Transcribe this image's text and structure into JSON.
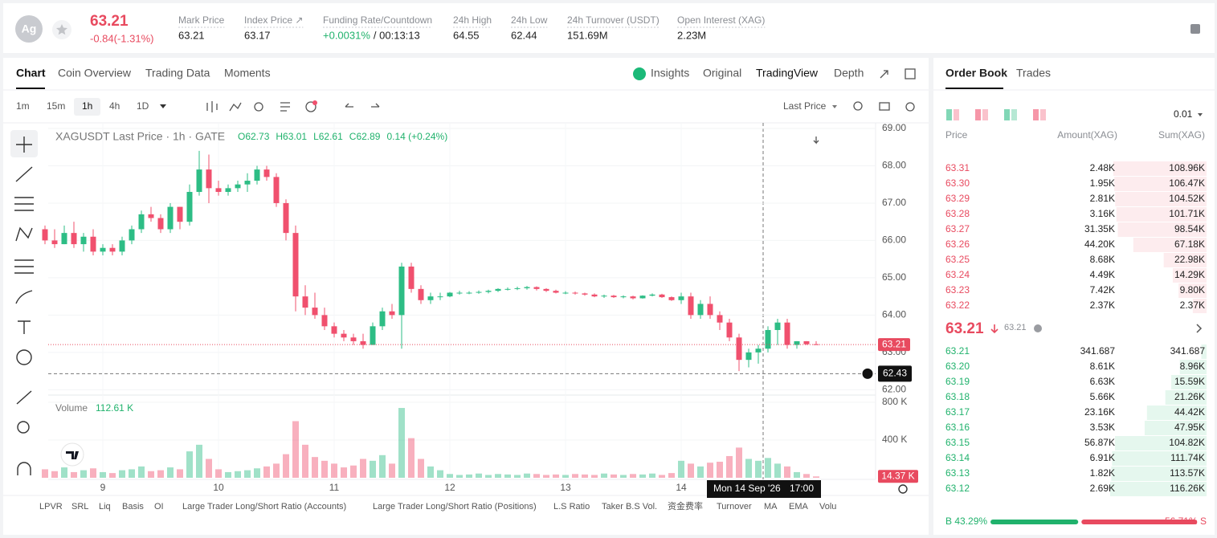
{
  "header": {
    "symbol_icon": "Ag",
    "price": "63.21",
    "change": "-0.84(-1.31%)",
    "stats": [
      {
        "label": "Mark Price",
        "value": "63.21"
      },
      {
        "label": "Index Price ↗",
        "value": "63.17"
      },
      {
        "label": "Funding Rate/Countdown",
        "value": "+0.0031%",
        "countdown": "/ 00:13:13"
      },
      {
        "label": "24h High",
        "value": "64.55"
      },
      {
        "label": "24h Low",
        "value": "62.44"
      },
      {
        "label": "24h Turnover (USDT)",
        "value": "151.69M"
      },
      {
        "label": "Open Interest (XAG)",
        "value": "2.23M"
      }
    ]
  },
  "tabs": [
    "Chart",
    "Coin Overview",
    "Trading Data",
    "Moments"
  ],
  "view_options": [
    "Insights",
    "Original",
    "TradingView",
    "Depth"
  ],
  "intervals": [
    "1m",
    "15m",
    "1h",
    "4h",
    "1D"
  ],
  "price_source": "Last Price",
  "chart_data": {
    "type": "candlestick",
    "legend": {
      "title": "XAGUSDT Last Price · 1h · GATE",
      "ohlc": [
        "O62.73",
        "H63.01",
        "L62.61",
        "C62.89"
      ],
      "change": "0.14 (+0.24%)"
    },
    "up_color": "#2dbd85",
    "down_color": "#f0506e",
    "candles": [
      [
        66.3,
        66.4,
        65.9,
        66.0
      ],
      [
        66.0,
        66.3,
        65.8,
        65.9
      ],
      [
        65.9,
        66.4,
        65.9,
        66.2
      ],
      [
        66.2,
        66.5,
        65.8,
        65.9
      ],
      [
        65.9,
        66.2,
        65.7,
        66.1
      ],
      [
        66.1,
        66.3,
        65.6,
        65.7
      ],
      [
        65.7,
        65.9,
        65.6,
        65.8
      ],
      [
        65.8,
        65.9,
        65.6,
        65.7
      ],
      [
        65.7,
        66.1,
        65.6,
        66.0
      ],
      [
        66.0,
        66.4,
        65.9,
        66.3
      ],
      [
        66.3,
        66.8,
        66.2,
        66.7
      ],
      [
        66.7,
        66.9,
        66.5,
        66.6
      ],
      [
        66.6,
        66.7,
        66.2,
        66.3
      ],
      [
        66.3,
        67.0,
        66.2,
        66.9
      ],
      [
        66.9,
        66.9,
        66.3,
        66.5
      ],
      [
        66.5,
        67.5,
        66.4,
        67.3
      ],
      [
        67.3,
        68.4,
        67.2,
        67.9
      ],
      [
        67.9,
        68.3,
        67.0,
        67.4
      ],
      [
        67.4,
        67.6,
        67.2,
        67.3
      ],
      [
        67.3,
        67.5,
        67.2,
        67.4
      ],
      [
        67.4,
        67.6,
        67.3,
        67.5
      ],
      [
        67.5,
        67.8,
        67.3,
        67.6
      ],
      [
        67.6,
        68.0,
        67.5,
        67.9
      ],
      [
        67.9,
        68.0,
        67.6,
        67.7
      ],
      [
        67.7,
        67.8,
        66.9,
        67.0
      ],
      [
        67.0,
        67.1,
        66.0,
        66.2
      ],
      [
        66.2,
        66.4,
        64.1,
        64.5
      ],
      [
        64.5,
        64.8,
        64.0,
        64.2
      ],
      [
        64.2,
        64.6,
        63.9,
        64.0
      ],
      [
        64.0,
        64.2,
        63.6,
        63.7
      ],
      [
        63.7,
        63.8,
        63.4,
        63.5
      ],
      [
        63.5,
        63.6,
        63.3,
        63.4
      ],
      [
        63.4,
        63.5,
        63.2,
        63.3
      ],
      [
        63.3,
        63.5,
        63.1,
        63.2
      ],
      [
        63.2,
        63.8,
        63.2,
        63.7
      ],
      [
        63.7,
        64.2,
        63.6,
        64.1
      ],
      [
        64.1,
        64.3,
        63.9,
        64.0
      ],
      [
        64.0,
        65.4,
        63.1,
        65.3
      ],
      [
        65.3,
        65.4,
        64.6,
        64.7
      ],
      [
        64.7,
        64.8,
        64.3,
        64.4
      ],
      [
        64.4,
        64.6,
        64.3,
        64.5
      ],
      [
        64.5,
        64.6,
        64.4,
        64.5
      ],
      [
        64.5,
        64.62,
        64.48,
        64.6
      ],
      [
        64.6,
        64.65,
        64.55,
        64.6
      ],
      [
        64.6,
        64.64,
        64.56,
        64.6
      ],
      [
        64.6,
        64.66,
        64.57,
        64.62
      ],
      [
        64.62,
        64.68,
        64.58,
        64.65
      ],
      [
        64.65,
        64.72,
        64.62,
        64.7
      ],
      [
        64.7,
        64.74,
        64.66,
        64.7
      ],
      [
        64.7,
        64.76,
        64.67,
        64.72
      ],
      [
        64.72,
        64.78,
        64.68,
        64.75
      ],
      [
        64.75,
        64.77,
        64.66,
        64.7
      ],
      [
        64.7,
        64.72,
        64.62,
        64.65
      ],
      [
        64.65,
        64.68,
        64.58,
        64.6
      ],
      [
        64.6,
        64.64,
        64.56,
        64.6
      ],
      [
        64.6,
        64.63,
        64.55,
        64.58
      ],
      [
        64.58,
        64.6,
        64.52,
        64.55
      ],
      [
        64.55,
        64.58,
        64.48,
        64.5
      ],
      [
        64.5,
        64.55,
        64.46,
        64.52
      ],
      [
        64.52,
        64.54,
        64.46,
        64.48
      ],
      [
        64.48,
        64.53,
        64.45,
        64.5
      ],
      [
        64.5,
        64.52,
        64.42,
        64.45
      ],
      [
        64.45,
        64.53,
        64.44,
        64.52
      ],
      [
        64.52,
        64.58,
        64.5,
        64.55
      ],
      [
        64.55,
        64.57,
        64.46,
        64.48
      ],
      [
        64.48,
        64.5,
        64.38,
        64.4
      ],
      [
        64.4,
        64.6,
        64.3,
        64.5
      ],
      [
        64.5,
        64.6,
        63.9,
        64.0
      ],
      [
        64.0,
        64.4,
        63.9,
        64.3
      ],
      [
        64.3,
        64.5,
        63.9,
        64.0
      ],
      [
        64.0,
        64.1,
        63.6,
        63.8
      ],
      [
        63.8,
        63.9,
        63.3,
        63.4
      ],
      [
        63.4,
        63.5,
        62.5,
        62.8
      ],
      [
        62.8,
        63.1,
        62.6,
        63.0
      ],
      [
        63.0,
        63.2,
        62.7,
        63.1
      ],
      [
        63.1,
        63.7,
        63.0,
        63.6
      ],
      [
        63.6,
        63.9,
        63.2,
        63.8
      ],
      [
        63.8,
        63.9,
        63.1,
        63.2
      ],
      [
        63.2,
        63.3,
        63.1,
        63.3
      ],
      [
        63.3,
        63.3,
        63.2,
        63.22
      ],
      [
        63.22,
        63.3,
        63.2,
        63.21
      ]
    ],
    "volumes": [
      90000,
      70000,
      110000,
      60000,
      80000,
      100000,
      60000,
      50000,
      80000,
      90000,
      120000,
      70000,
      80000,
      110000,
      90000,
      280000,
      350000,
      200000,
      90000,
      60000,
      70000,
      80000,
      100000,
      120000,
      150000,
      250000,
      600000,
      350000,
      220000,
      180000,
      150000,
      110000,
      130000,
      200000,
      180000,
      240000,
      150000,
      740000,
      420000,
      200000,
      120000,
      80000,
      40000,
      30000,
      35000,
      45000,
      30000,
      40000,
      35000,
      30000,
      45000,
      40000,
      30000,
      35000,
      30000,
      40000,
      35000,
      30000,
      45000,
      35000,
      30000,
      40000,
      35000,
      45000,
      30000,
      50000,
      180000,
      150000,
      120000,
      160000,
      170000,
      230000,
      320000,
      200000,
      180000,
      210000,
      150000,
      120000,
      60000,
      40000,
      14370
    ],
    "ylim": [
      61.9,
      69.15
    ],
    "yticks": [
      {
        "value": 62,
        "label": "62.00"
      },
      {
        "value": 63,
        "label": "63.00"
      },
      {
        "value": 64,
        "label": "64.00"
      },
      {
        "value": 65,
        "label": "65.00"
      },
      {
        "value": 66,
        "label": "66.00"
      },
      {
        "value": 67,
        "label": "67.00"
      },
      {
        "value": 68,
        "label": "68.00"
      },
      {
        "value": 69,
        "label": "69.00"
      }
    ],
    "volume_ylim": [
      0,
      868000
    ],
    "volume_yticks": [
      {
        "value": 400000,
        "label": "400 K"
      },
      {
        "value": 800000,
        "label": "800 K"
      }
    ],
    "xticks": [
      {
        "value": 6,
        "label": "9"
      },
      {
        "value": 18,
        "label": "10"
      },
      {
        "value": 30,
        "label": "11"
      },
      {
        "value": 42,
        "label": "12"
      },
      {
        "value": 54,
        "label": "13"
      },
      {
        "value": 66,
        "label": "14"
      }
    ],
    "last_price": {
      "value": 63.21,
      "label": "63.21"
    },
    "crosshair_price": 62.43,
    "crosshair_date": "Mon 14 Sep '26",
    "crosshair_time": "17:00",
    "volume_title": "Volume",
    "volume_value": "112.61 K",
    "last_volume": {
      "value": 14370,
      "label": "14.37 K"
    }
  },
  "indicators": [
    "LPVR",
    "SRL",
    "Liq",
    "Basis",
    "OI",
    "Large Trader Long/Short Ratio (Accounts)",
    "Large Trader Long/Short Ratio (Positions)",
    "L.S Ratio",
    "Taker B.S Vol.",
    "资金费率",
    "Turnover",
    "MA",
    "EMA",
    "Volu"
  ],
  "order_book": {
    "tabs": [
      "Order Book",
      "Trades"
    ],
    "precision": "0.01",
    "columns": [
      "Price",
      "Amount(XAG)",
      "Sum(XAG)"
    ],
    "asks": [
      [
        "63.31",
        "2.48K",
        "108.96K"
      ],
      [
        "63.30",
        "1.95K",
        "106.47K"
      ],
      [
        "63.29",
        "2.81K",
        "104.52K"
      ],
      [
        "63.28",
        "3.16K",
        "101.71K"
      ],
      [
        "63.27",
        "31.35K",
        "98.54K"
      ],
      [
        "63.26",
        "44.20K",
        "67.18K"
      ],
      [
        "63.25",
        "8.68K",
        "22.98K"
      ],
      [
        "63.24",
        "4.49K",
        "14.29K"
      ],
      [
        "63.23",
        "7.42K",
        "9.80K"
      ],
      [
        "63.22",
        "2.37K",
        "2.37K"
      ]
    ],
    "last_price": "63.21",
    "mark_price": "63.21",
    "bids": [
      [
        "63.21",
        "341.687",
        "341.687"
      ],
      [
        "63.20",
        "8.61K",
        "8.96K"
      ],
      [
        "63.19",
        "6.63K",
        "15.59K"
      ],
      [
        "63.18",
        "5.66K",
        "21.26K"
      ],
      [
        "63.17",
        "23.16K",
        "44.42K"
      ],
      [
        "63.16",
        "3.53K",
        "47.95K"
      ],
      [
        "63.15",
        "56.87K",
        "104.82K"
      ],
      [
        "63.14",
        "6.91K",
        "111.74K"
      ],
      [
        "63.13",
        "1.82K",
        "113.57K"
      ],
      [
        "63.12",
        "2.69K",
        "116.26K"
      ]
    ],
    "buy_ratio": "B 43.29%",
    "sell_ratio": "56.71% S"
  }
}
